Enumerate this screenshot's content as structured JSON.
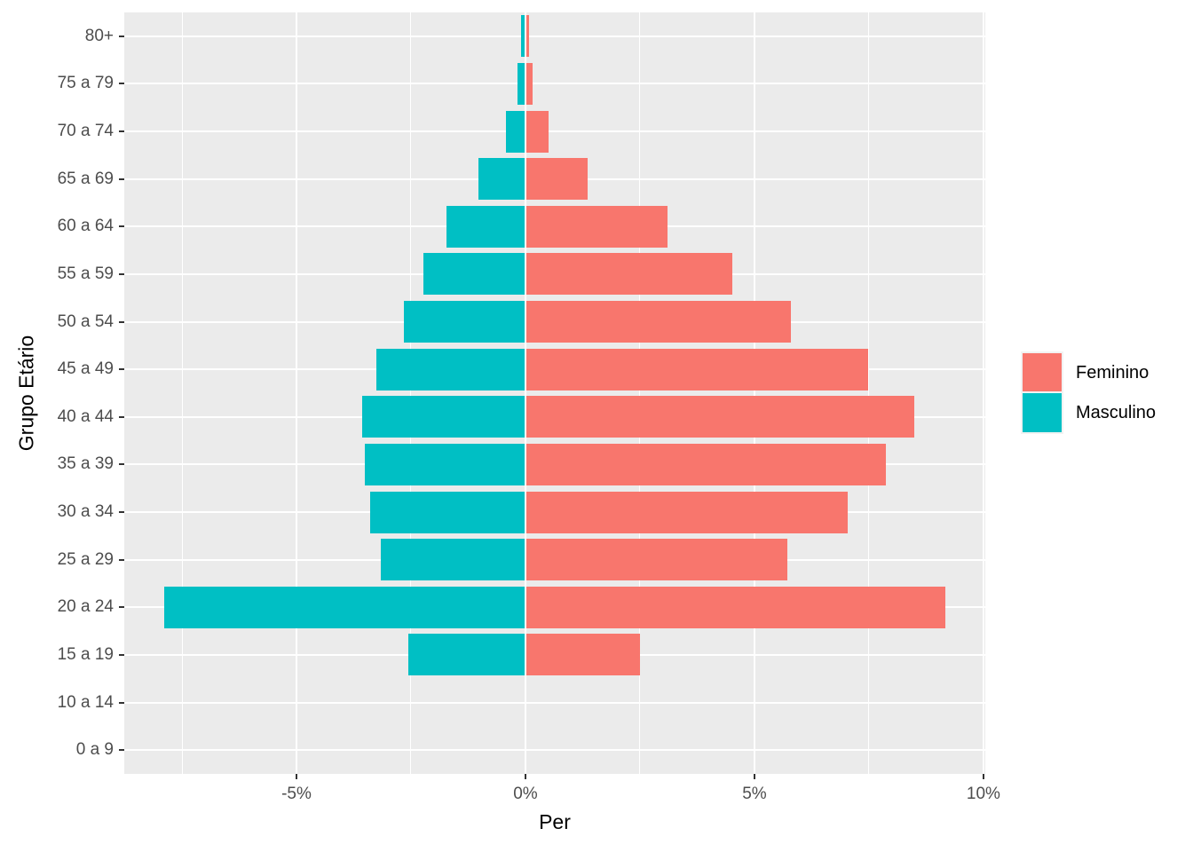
{
  "chart_data": {
    "type": "bar",
    "variant": "population-pyramid",
    "orientation": "horizontal",
    "title": "",
    "xlabel": "Per",
    "ylabel": "Grupo Etário",
    "categories_top_to_bottom": [
      "80+",
      "75 a 79",
      "70 a 74",
      "65 a 69",
      "60 a 64",
      "55 a 59",
      "50 a 54",
      "45 a 49",
      "40 a 44",
      "35 a 39",
      "30 a 34",
      "25 a 29",
      "20 a 24",
      "15 a 19",
      "10 a 14",
      "0 a 9"
    ],
    "series": [
      {
        "name": "Feminino",
        "color": "#F8766D",
        "side": "right",
        "values_pct": [
          0.08,
          0.16,
          0.5,
          1.35,
          3.11,
          4.51,
          5.8,
          7.49,
          8.48,
          7.86,
          7.03,
          5.71,
          9.16,
          2.51,
          0,
          0
        ]
      },
      {
        "name": "Masculino",
        "color": "#00BFC4",
        "side": "left",
        "values_pct": [
          0.1,
          0.17,
          0.43,
          1.03,
          1.73,
          2.22,
          2.65,
          3.26,
          3.57,
          3.5,
          3.4,
          3.15,
          7.89,
          2.55,
          0,
          0
        ]
      }
    ],
    "x_axis": {
      "tick_labels": [
        "-5%",
        "0%",
        "5%",
        "10%"
      ],
      "tick_values": [
        -5,
        0,
        5,
        10
      ],
      "minor_tick_values": [
        -7.5,
        -2.5,
        2.5,
        7.5
      ],
      "limits": [
        -8.76,
        10.04
      ],
      "note": "Masculino plotted as negative (left of zero); values stored as magnitudes in percent"
    },
    "legend": {
      "position": "right",
      "title": "",
      "entries": [
        "Feminino",
        "Masculino"
      ]
    },
    "style": {
      "panel_background": "#EBEBEB",
      "gridline_color": "#FFFFFF",
      "tick_label_color": "#4D4D4D",
      "axis_title_color": "#000000",
      "tick_mark_color": "#333333",
      "legend_key_background": "#F2F2F2",
      "grid": "major and minor vertical, major horizontal per category"
    }
  }
}
